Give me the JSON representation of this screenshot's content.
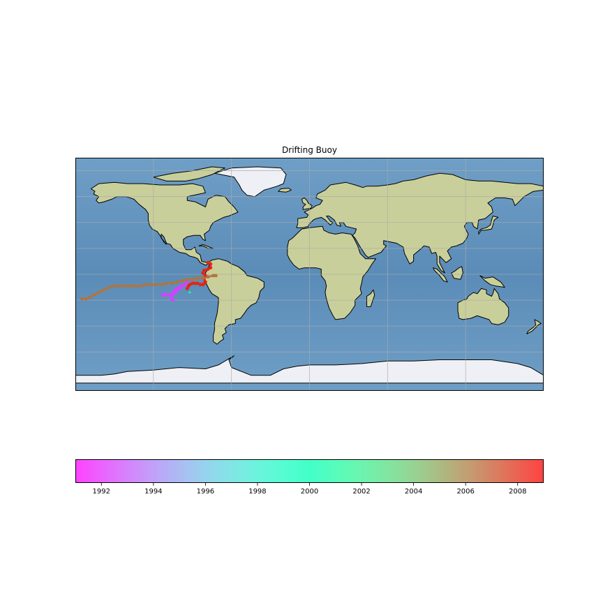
{
  "title": "Drifting Buoy",
  "colors": {
    "ocean": "#6f9fc6",
    "ocean_deep": "#5b8cb8",
    "land": "#c9cf9a",
    "land_dark": "#a9b57c",
    "ice": "#eef0f5",
    "grid": "#aaaaaa",
    "coast": "#000000"
  },
  "colorbar": {
    "cmap": "rainbow",
    "min": 1991.0,
    "max": 2009.0,
    "ticks": [
      "1992",
      "1994",
      "1996",
      "1998",
      "2000",
      "2002",
      "2004",
      "2006",
      "2008"
    ],
    "tick_values": [
      1992,
      1994,
      1996,
      1998,
      2000,
      2002,
      2004,
      2006,
      2008
    ]
  },
  "map": {
    "projection": "PlateCarree",
    "lon_range": [
      -180,
      180
    ],
    "lat_range": [
      -90,
      90
    ],
    "gridlines": true,
    "grid_lons": [
      -120,
      -60,
      0,
      60,
      120
    ],
    "grid_lats": [
      -60,
      -40,
      -20,
      0,
      20,
      40,
      60,
      80
    ]
  },
  "chart_data": {
    "type": "scatter",
    "title": "Drifting Buoy",
    "xlabel": "",
    "ylabel": "",
    "series": [
      {
        "color_value": 1992.5,
        "points": [
          [
            -113,
            -16
          ],
          [
            -111,
            -15.5
          ],
          [
            -109,
            -16
          ],
          [
            -107,
            -16
          ],
          [
            -105,
            -15
          ],
          [
            -104,
            -13
          ],
          [
            -103,
            -12
          ],
          [
            -102,
            -11
          ],
          [
            -100,
            -10
          ],
          [
            -98,
            -9
          ],
          [
            -96,
            -8
          ],
          [
            -95,
            -7
          ],
          [
            -94,
            -6
          ],
          [
            -106,
            -17
          ],
          [
            -106,
            -19
          ],
          [
            -105,
            -20
          ]
        ]
      },
      {
        "color_value": 2008.2,
        "points": [
          [
            -94,
            -11
          ],
          [
            -93,
            -9
          ],
          [
            -92,
            -8
          ],
          [
            -90,
            -7
          ],
          [
            -88,
            -7
          ],
          [
            -86,
            -7
          ],
          [
            -84,
            -8
          ],
          [
            -82,
            -8
          ],
          [
            -81,
            -7
          ],
          [
            -80,
            -6
          ],
          [
            -81,
            -3
          ],
          [
            -80,
            -1
          ],
          [
            -82,
            1
          ],
          [
            -81,
            3
          ],
          [
            -78,
            4
          ],
          [
            -76,
            5
          ],
          [
            -76,
            8
          ],
          [
            -78,
            9
          ]
        ]
      },
      {
        "color_value": 2006.3,
        "points": [
          [
            -175,
            -19
          ],
          [
            -172,
            -19
          ],
          [
            -169,
            -18
          ],
          [
            -166,
            -16
          ],
          [
            -162,
            -14
          ],
          [
            -158,
            -12
          ],
          [
            -154,
            -10
          ],
          [
            -150,
            -9
          ],
          [
            -146,
            -9
          ],
          [
            -142,
            -9
          ],
          [
            -138,
            -9
          ],
          [
            -134,
            -9
          ],
          [
            -130,
            -9
          ],
          [
            -126,
            -8
          ],
          [
            -122,
            -8
          ],
          [
            -118,
            -8
          ],
          [
            -114,
            -8
          ],
          [
            -110,
            -7
          ],
          [
            -106,
            -7
          ],
          [
            -102,
            -6
          ],
          [
            -98,
            -5
          ],
          [
            -94,
            -4
          ],
          [
            -90,
            -4
          ],
          [
            -86,
            -3
          ],
          [
            -82,
            -3
          ],
          [
            -78,
            -2
          ],
          [
            -74,
            -1
          ],
          [
            -72,
            -1
          ]
        ]
      },
      {
        "color_value": 2001.0,
        "points": [
          [
            -92,
            -14
          ]
        ]
      }
    ]
  }
}
